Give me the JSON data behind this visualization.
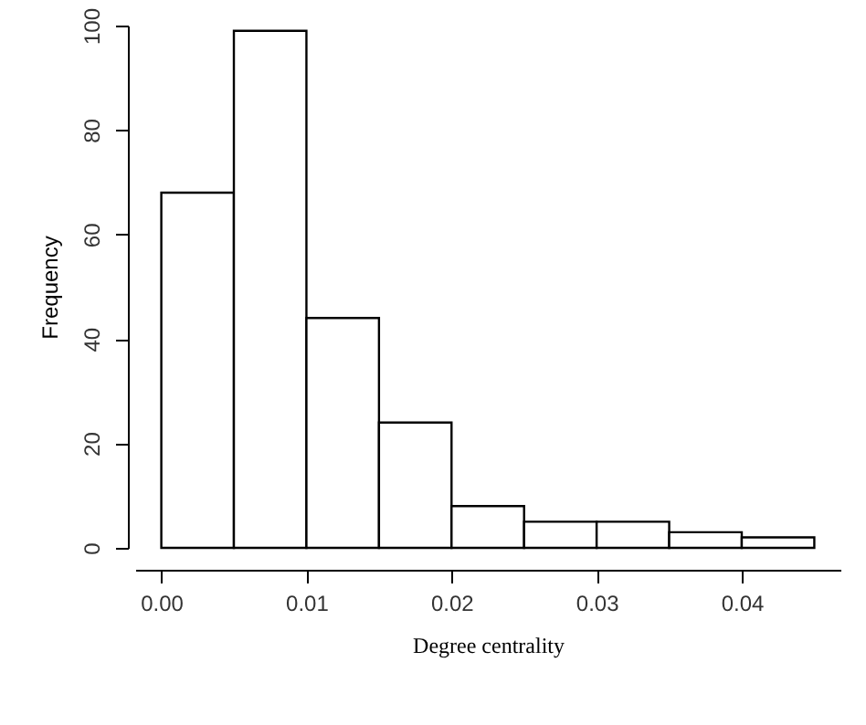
{
  "chart_data": {
    "type": "histogram",
    "xlabel": "Degree centrality",
    "ylabel": "Frequency",
    "bins": [
      0,
      0.005,
      0.01,
      0.015,
      0.02,
      0.025,
      0.03,
      0.035,
      0.04,
      0.045
    ],
    "values": [
      68,
      99,
      44,
      24,
      8,
      5,
      5,
      3,
      2
    ],
    "color": "#ffffff",
    "xlim": [
      -0.0018,
      0.0468
    ],
    "xticks": [
      {
        "value": 0,
        "label": "0.00"
      },
      0.01,
      0.02,
      0.03,
      0.04
    ],
    "ylim": [
      0,
      100
    ],
    "yticks": [
      0,
      20,
      40,
      60,
      80,
      100
    ]
  }
}
